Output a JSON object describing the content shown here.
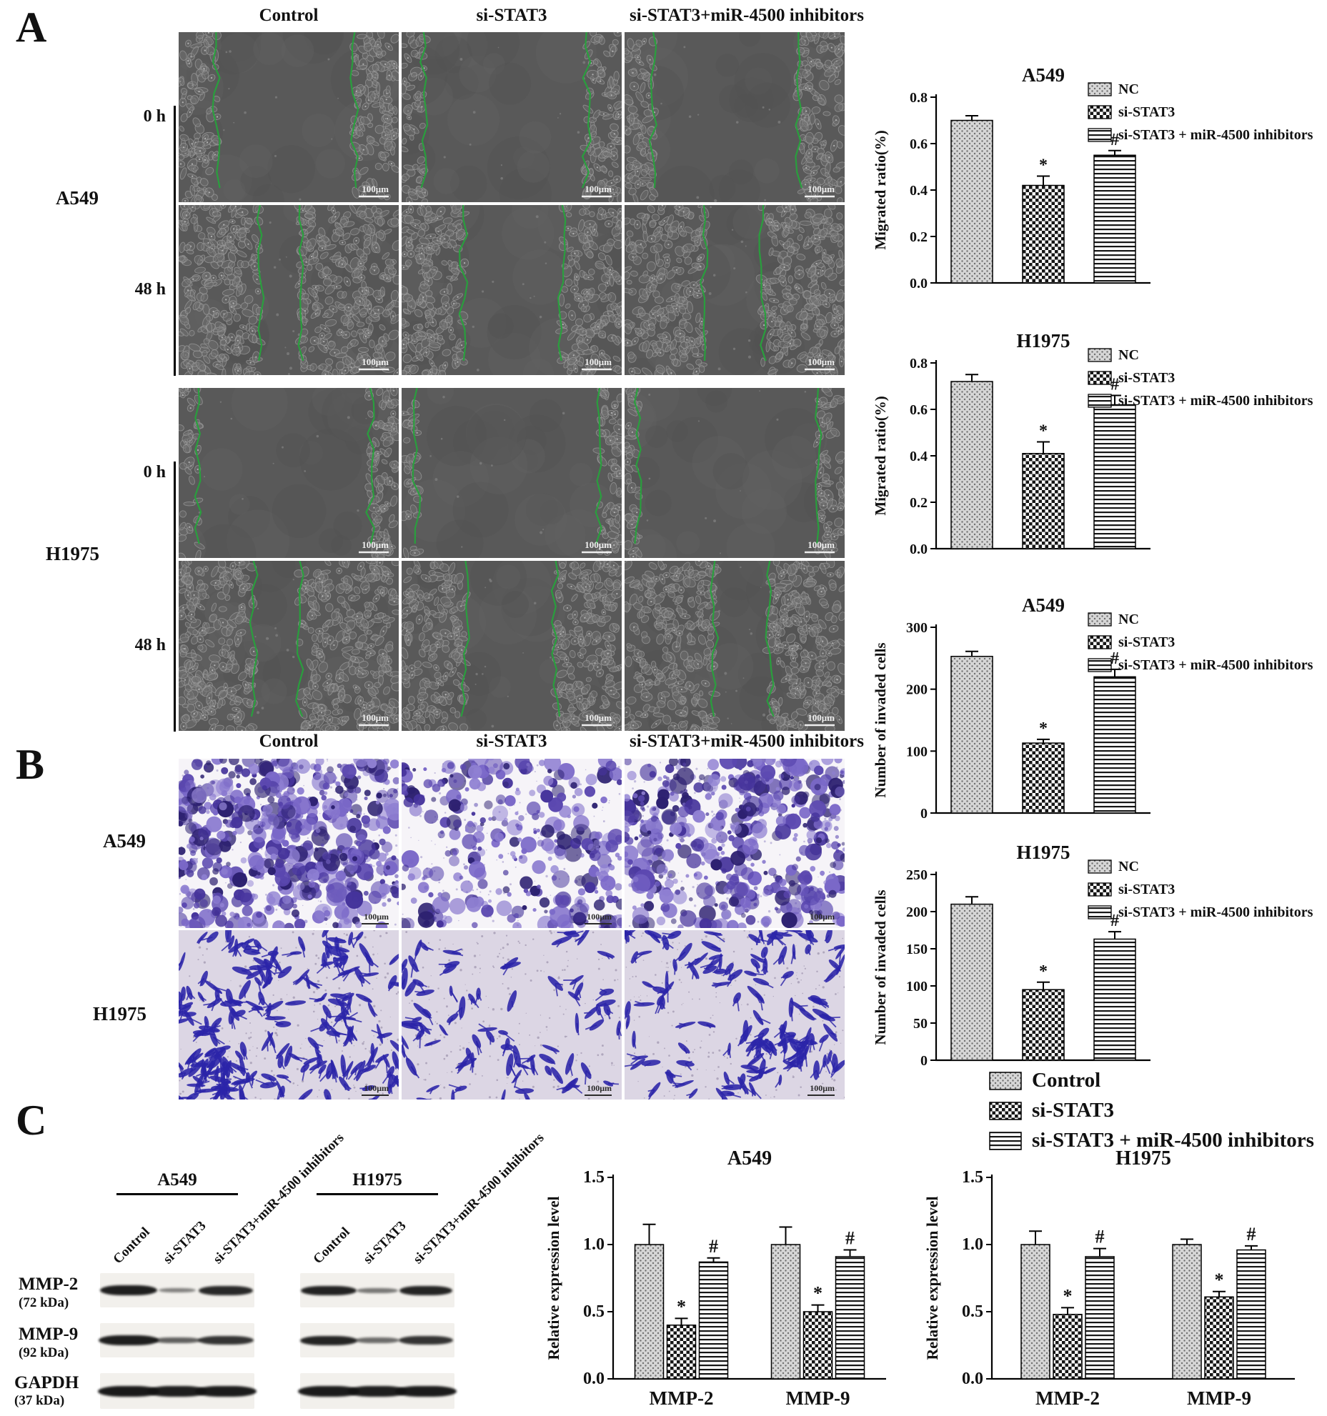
{
  "panelA": {
    "label": "A",
    "col_headers": [
      "Control",
      "si-STAT3",
      "si-STAT3+miR-4500 inhibitors"
    ],
    "groups": [
      {
        "name": "A549",
        "time_labels": [
          "0 h",
          "48 h"
        ]
      },
      {
        "name": "H1975",
        "time_labels": [
          "0 h",
          "48 h"
        ]
      }
    ],
    "scale_bar_label": "100μm"
  },
  "panelB": {
    "label": "B",
    "col_headers": [
      "Control",
      "si-STAT3",
      "si-STAT3+miR-4500 inhibitors"
    ],
    "row_labels": [
      "A549",
      "H1975"
    ],
    "scale_bar_label": "100μm"
  },
  "panelC": {
    "label": "C",
    "legend": {
      "entries": [
        {
          "label": "Control",
          "pattern": "dots"
        },
        {
          "label": "si-STAT3",
          "pattern": "checker"
        },
        {
          "label": "si-STAT3 + miR-4500 inhibitors",
          "pattern": "hlines"
        }
      ]
    },
    "blot": {
      "group_headers": [
        "A549",
        "H1975"
      ],
      "lane_labels": [
        "Control",
        "si-STAT3",
        "si-STAT3+miR-4500 inhibitors"
      ],
      "targets": [
        {
          "name": "MMP-2",
          "kda": "(72 kDa)"
        },
        {
          "name": "MMP-9",
          "kda": "(92 kDa)"
        },
        {
          "name": "GAPDH",
          "kda": "(37 kDa)"
        }
      ]
    }
  },
  "chart_data": [
    {
      "id": "a549-migration",
      "type": "bar",
      "title": "A549",
      "ylabel": "Migrated ratio(%)",
      "ylim": [
        0,
        0.8
      ],
      "yticks": [
        0,
        0.2,
        0.4,
        0.6,
        0.8
      ],
      "ytick_decimals": 1,
      "categories": [
        "NC",
        "si-STAT3",
        "si-STAT3 + miR-4500 inhibitors"
      ],
      "values": [
        0.7,
        0.42,
        0.55
      ],
      "errors": [
        0.02,
        0.04,
        0.02
      ],
      "annotations": [
        "",
        "*",
        "#"
      ],
      "patterns": [
        "dots",
        "checker",
        "hlines"
      ],
      "legend": [
        "NC",
        "si-STAT3",
        "si-STAT3 + miR-4500 inhibitors"
      ],
      "legend_position": "top-right",
      "grid": false
    },
    {
      "id": "h1975-migration",
      "type": "bar",
      "title": "H1975",
      "ylabel": "Migrated ratio(%)",
      "ylim": [
        0,
        0.8
      ],
      "yticks": [
        0,
        0.2,
        0.4,
        0.6,
        0.8
      ],
      "ytick_decimals": 1,
      "categories": [
        "NC",
        "si-STAT3",
        "si-STAT3 + miR-4500 inhibitors"
      ],
      "values": [
        0.72,
        0.41,
        0.62
      ],
      "errors": [
        0.03,
        0.05,
        0.04
      ],
      "annotations": [
        "",
        "*",
        "#"
      ],
      "patterns": [
        "dots",
        "checker",
        "hlines"
      ],
      "legend": [
        "NC",
        "si-STAT3",
        "si-STAT3 + miR-4500 inhibitors"
      ],
      "legend_position": "top-right",
      "grid": false
    },
    {
      "id": "a549-invasion",
      "type": "bar",
      "title": "A549",
      "ylabel": "Number of invaded cells",
      "ylim": [
        0,
        300
      ],
      "yticks": [
        0,
        100,
        200,
        300
      ],
      "ytick_decimals": 0,
      "categories": [
        "NC",
        "si-STAT3",
        "si-STAT3 + miR-4500 inhibitors"
      ],
      "values": [
        253,
        113,
        220
      ],
      "errors": [
        8,
        6,
        12
      ],
      "annotations": [
        "",
        "*",
        "#"
      ],
      "patterns": [
        "dots",
        "checker",
        "hlines"
      ],
      "legend": [
        "NC",
        "si-STAT3",
        "si-STAT3 + miR-4500 inhibitors"
      ],
      "legend_position": "top-right",
      "grid": false
    },
    {
      "id": "h1975-invasion",
      "type": "bar",
      "title": "H1975",
      "ylabel": "Number of invaded cells",
      "ylim": [
        0,
        250
      ],
      "yticks": [
        0,
        50,
        100,
        150,
        200,
        250
      ],
      "ytick_decimals": 0,
      "categories": [
        "NC",
        "si-STAT3",
        "si-STAT3 + miR-4500 inhibitors"
      ],
      "values": [
        210,
        95,
        163
      ],
      "errors": [
        10,
        10,
        10
      ],
      "annotations": [
        "",
        "*",
        "#"
      ],
      "patterns": [
        "dots",
        "checker",
        "hlines"
      ],
      "legend": [
        "NC",
        "si-STAT3",
        "si-STAT3 + miR-4500 inhibitors"
      ],
      "legend_position": "top-right",
      "grid": false
    },
    {
      "id": "a549-expression",
      "type": "grouped-bar",
      "title": "A549",
      "ylabel": "Relative expression level",
      "ylim": [
        0,
        1.5
      ],
      "yticks": [
        0,
        0.5,
        1.0,
        1.5
      ],
      "ytick_decimals": 1,
      "categories": [
        "MMP-2",
        "MMP-9"
      ],
      "series": [
        {
          "name": "Control",
          "pattern": "dots",
          "values": [
            1.0,
            1.0
          ],
          "errors": [
            0.15,
            0.13
          ],
          "annotations": [
            "",
            ""
          ]
        },
        {
          "name": "si-STAT3",
          "pattern": "checker",
          "values": [
            0.4,
            0.5
          ],
          "errors": [
            0.05,
            0.05
          ],
          "annotations": [
            "*",
            "*"
          ]
        },
        {
          "name": "si-STAT3 + miR-4500 inhibitors",
          "pattern": "hlines",
          "values": [
            0.87,
            0.91
          ],
          "errors": [
            0.03,
            0.05
          ],
          "annotations": [
            "#",
            "#"
          ]
        }
      ],
      "grid": false
    },
    {
      "id": "h1975-expression",
      "type": "grouped-bar",
      "title": "H1975",
      "ylabel": "Relative expression level",
      "ylim": [
        0,
        1.5
      ],
      "yticks": [
        0,
        0.5,
        1.0,
        1.5
      ],
      "ytick_decimals": 1,
      "categories": [
        "MMP-2",
        "MMP-9"
      ],
      "series": [
        {
          "name": "Control",
          "pattern": "dots",
          "values": [
            1.0,
            1.0
          ],
          "errors": [
            0.1,
            0.04
          ],
          "annotations": [
            "",
            ""
          ]
        },
        {
          "name": "si-STAT3",
          "pattern": "checker",
          "values": [
            0.48,
            0.61
          ],
          "errors": [
            0.05,
            0.04
          ],
          "annotations": [
            "*",
            "*"
          ]
        },
        {
          "name": "si-STAT3 + miR-4500 inhibitors",
          "pattern": "hlines",
          "values": [
            0.91,
            0.96
          ],
          "errors": [
            0.06,
            0.03
          ],
          "annotations": [
            "#",
            "#"
          ]
        }
      ],
      "grid": false
    }
  ]
}
